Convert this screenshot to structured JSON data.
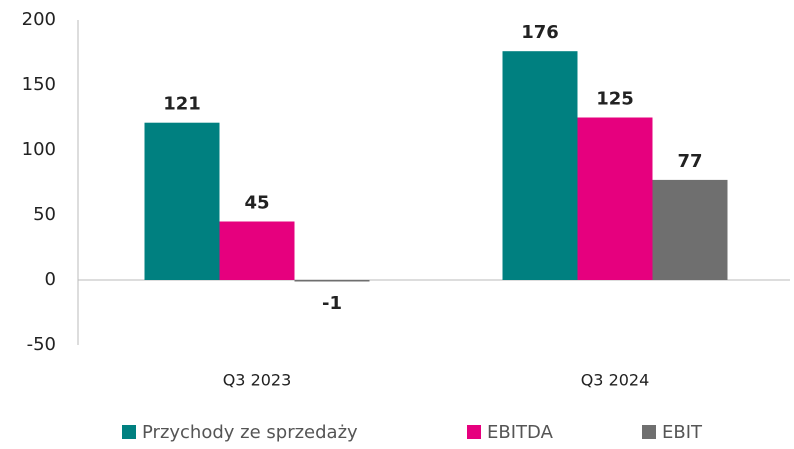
{
  "chart_data": {
    "type": "bar",
    "categories": [
      "Q3 2023",
      "Q3 2024"
    ],
    "series": [
      {
        "name": "Przychody ze sprzedaży",
        "color": "#008080",
        "values": [
          121,
          176
        ]
      },
      {
        "name": "EBITDA",
        "color": "#e6007e",
        "values": [
          45,
          125
        ]
      },
      {
        "name": "EBIT",
        "color": "#6f6f6f",
        "values": [
          -1,
          77
        ]
      }
    ],
    "ylim": [
      -50,
      200
    ],
    "yticks": [
      -50,
      0,
      50,
      100,
      150,
      200
    ],
    "legend": "bottom"
  }
}
